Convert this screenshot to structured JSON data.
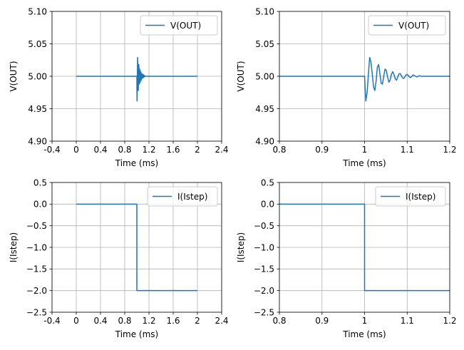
{
  "chart_data": [
    {
      "type": "line",
      "xlabel": "Time (ms)",
      "ylabel": "V(OUT)",
      "xlim": [
        -0.4,
        2.4
      ],
      "ylim": [
        4.9,
        5.1
      ],
      "xticks": [
        "-0.4",
        "0",
        "0.4",
        "0.8",
        "1.2",
        "1.6",
        "2",
        "2.4"
      ],
      "yticks": [
        "4.90",
        "4.95",
        "5.00",
        "5.05",
        "5.10"
      ],
      "grid": true,
      "legend": "upper-right",
      "series": [
        {
          "name": "V(OUT)",
          "color": "#1f77b4",
          "x": [
            0,
            1.0,
            1.001,
            1.003,
            1.006,
            1.009,
            1.012,
            1.015,
            1.018,
            1.021,
            1.024,
            1.027,
            1.03,
            1.033,
            1.036,
            1.039,
            1.042,
            1.045,
            1.048,
            1.051,
            1.054,
            1.057,
            1.06,
            1.063,
            1.066,
            1.069,
            1.072,
            1.075,
            1.078,
            1.081,
            1.084,
            1.087,
            1.09,
            1.093,
            1.096,
            1.099,
            1.102,
            1.105,
            1.108,
            1.111,
            1.114,
            1.117,
            1.12,
            1.123,
            1.126,
            1.129,
            1.132,
            1.135,
            1.138,
            1.141,
            1.15,
            2.0
          ],
          "y": [
            5.0,
            5.0,
            4.985,
            4.962,
            4.975,
            5.003,
            5.029,
            5.022,
            5.004,
            4.984,
            4.978,
            4.992,
            5.014,
            5.018,
            5.004,
            4.989,
            4.988,
            5.0,
            5.011,
            5.009,
            4.999,
            4.991,
            4.994,
            5.003,
            5.007,
            5.003,
            4.996,
            4.994,
            4.999,
            5.004,
            5.004,
            5.0,
            4.997,
            4.997,
            5.001,
            5.003,
            5.002,
            4.999,
            4.998,
            5.0,
            5.002,
            5.001,
            5.0,
            4.999,
            5.0,
            5.001,
            5.0,
            5.0,
            5.0,
            5.0,
            5.0,
            5.0
          ]
        }
      ]
    },
    {
      "type": "line",
      "xlabel": "Time (ms)",
      "ylabel": "V(OUT)",
      "xlim": [
        0.8,
        1.2
      ],
      "ylim": [
        4.9,
        5.1
      ],
      "xticks": [
        "0.8",
        "0.9",
        "1",
        "1.1",
        "1.2"
      ],
      "yticks": [
        "4.90",
        "4.95",
        "5.00",
        "5.05",
        "5.10"
      ],
      "grid": true,
      "legend": "upper-right",
      "series": [
        {
          "name": "V(OUT)",
          "color": "#1f77b4",
          "x": [
            0.8,
            1.0,
            1.001,
            1.003,
            1.006,
            1.009,
            1.012,
            1.015,
            1.018,
            1.021,
            1.024,
            1.027,
            1.03,
            1.033,
            1.036,
            1.039,
            1.042,
            1.045,
            1.048,
            1.051,
            1.054,
            1.057,
            1.06,
            1.063,
            1.066,
            1.069,
            1.072,
            1.075,
            1.078,
            1.081,
            1.084,
            1.087,
            1.09,
            1.093,
            1.096,
            1.099,
            1.102,
            1.105,
            1.108,
            1.111,
            1.114,
            1.117,
            1.12,
            1.123,
            1.126,
            1.129,
            1.132,
            1.135,
            1.138,
            1.141,
            1.15,
            1.2
          ],
          "y": [
            5.0,
            5.0,
            4.985,
            4.962,
            4.975,
            5.003,
            5.029,
            5.022,
            5.004,
            4.984,
            4.978,
            4.992,
            5.014,
            5.018,
            5.004,
            4.989,
            4.988,
            5.0,
            5.011,
            5.009,
            4.999,
            4.991,
            4.994,
            5.003,
            5.007,
            5.003,
            4.996,
            4.994,
            4.999,
            5.004,
            5.004,
            5.0,
            4.997,
            4.997,
            5.001,
            5.003,
            5.002,
            4.999,
            4.998,
            5.0,
            5.002,
            5.001,
            5.0,
            4.999,
            5.0,
            5.001,
            5.0,
            5.0,
            5.0,
            5.0,
            5.0,
            5.0
          ]
        }
      ]
    },
    {
      "type": "line",
      "xlabel": "Time (ms)",
      "ylabel": "I(Istep)",
      "xlim": [
        -0.4,
        2.4
      ],
      "ylim": [
        -2.5,
        0.5
      ],
      "xticks": [
        "-0.4",
        "0",
        "0.4",
        "0.8",
        "1.2",
        "1.6",
        "2",
        "2.4"
      ],
      "yticks": [
        "−2.5",
        "−2.0",
        "−1.5",
        "−1.0",
        "−0.5",
        "0.0",
        "0.5"
      ],
      "grid": true,
      "legend": "upper-right",
      "series": [
        {
          "name": "I(Istep)",
          "color": "#1f77b4",
          "x": [
            0,
            1.0,
            1.0,
            2.0
          ],
          "y": [
            0,
            0,
            -2,
            -2
          ]
        }
      ]
    },
    {
      "type": "line",
      "xlabel": "Time (ms)",
      "ylabel": "I(Istep)",
      "xlim": [
        0.8,
        1.2
      ],
      "ylim": [
        -2.5,
        0.5
      ],
      "xticks": [
        "0.8",
        "0.9",
        "1",
        "1.1",
        "1.2"
      ],
      "yticks": [
        "−2.5",
        "−2.0",
        "−1.5",
        "−1.0",
        "−0.5",
        "0.0",
        "0.5"
      ],
      "grid": true,
      "legend": "upper-right",
      "series": [
        {
          "name": "I(Istep)",
          "color": "#1f77b4",
          "x": [
            0.8,
            1.0,
            1.0,
            1.2
          ],
          "y": [
            0,
            0,
            -2,
            -2
          ]
        }
      ]
    }
  ]
}
